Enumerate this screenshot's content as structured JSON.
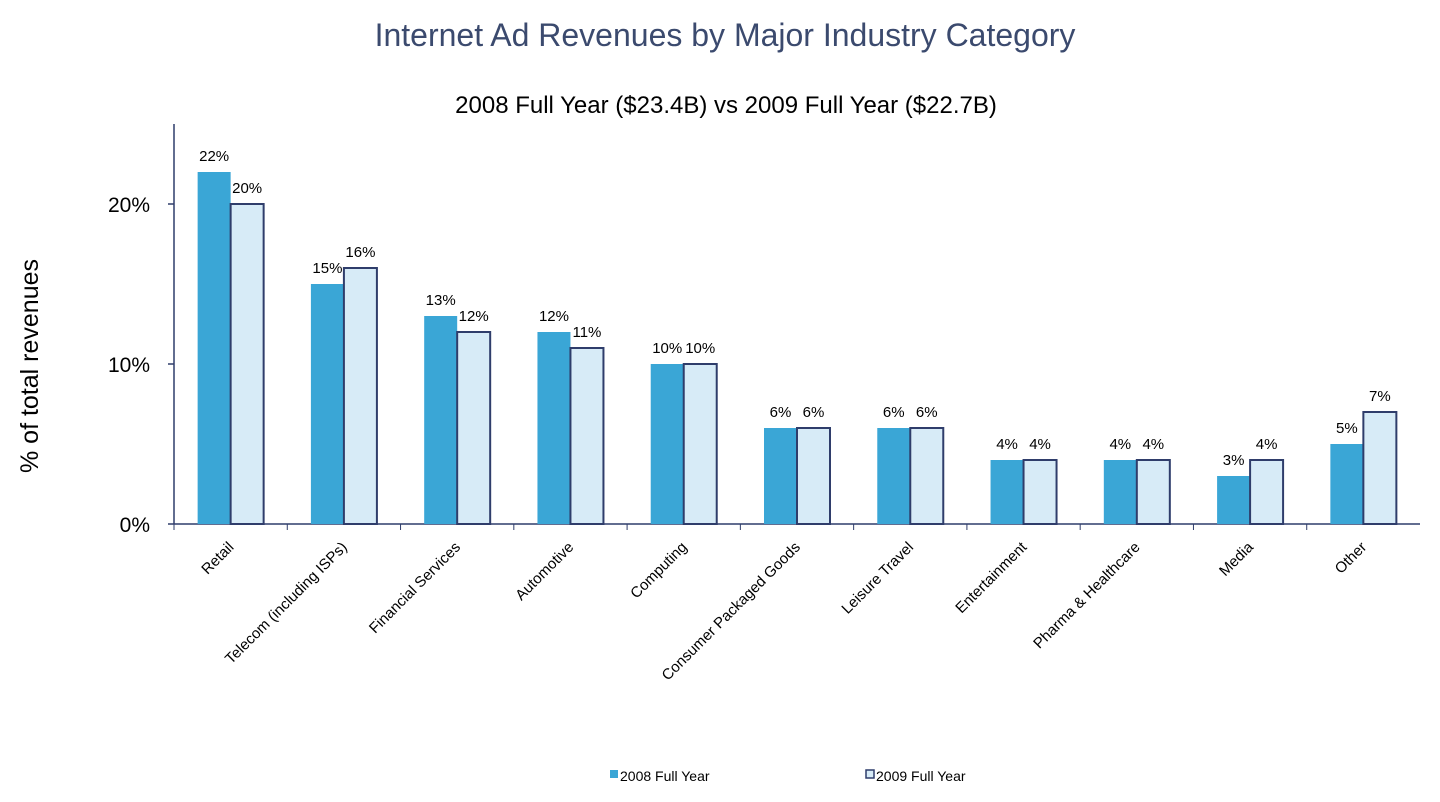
{
  "chart_data": {
    "type": "bar",
    "title": "Internet Ad Revenues by Major Industry Category",
    "subtitle": "2008 Full Year ($23.4B) vs 2009 Full Year ($22.7B)",
    "xlabel": "",
    "ylabel": "% of total revenues",
    "ylim": [
      0,
      25
    ],
    "yticks": [
      "0%",
      "10%",
      "20%"
    ],
    "ytick_values": [
      0,
      10,
      20
    ],
    "grid": false,
    "legend_position": "bottom",
    "categories": [
      "Retail",
      "Telecom (including ISPs)",
      "Financial Services",
      "Automotive",
      "Computing",
      "Consumer Packaged Goods",
      "Leisure Travel",
      "Entertainment",
      "Pharma & Healthcare",
      "Media",
      "Other"
    ],
    "series": [
      {
        "name": "2008 Full Year",
        "values": [
          22,
          15,
          13,
          12,
          10,
          6,
          6,
          4,
          4,
          3,
          5
        ],
        "labels": [
          "22%",
          "15%",
          "13%",
          "12%",
          "10%",
          "6%",
          "6%",
          "4%",
          "4%",
          "3%",
          "5%"
        ],
        "color": "#3aa6d6"
      },
      {
        "name": "2009 Full Year",
        "values": [
          20,
          16,
          12,
          11,
          10,
          6,
          6,
          4,
          4,
          4,
          7
        ],
        "labels": [
          "20%",
          "16%",
          "12%",
          "11%",
          "10%",
          "6%",
          "6%",
          "4%",
          "4%",
          "4%",
          "7%"
        ],
        "color": "#d7ebf7",
        "stroke": "#2f3d6b"
      }
    ]
  }
}
